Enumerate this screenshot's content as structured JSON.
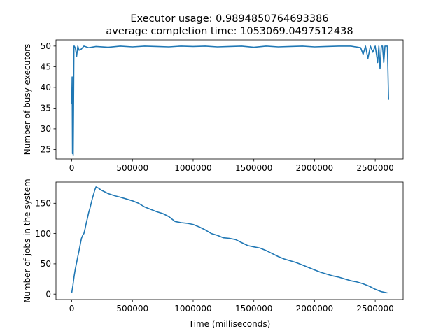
{
  "figure": {
    "title_line1": "Executor usage: 0.9894850764693386",
    "title_line2": "average completion time: 1053069.0497512438"
  },
  "chart_data": [
    {
      "type": "line",
      "title": "Executor usage: 0.9894850764693386\naverage completion time: 1053069.0497512438",
      "xlabel": "",
      "ylabel": "Number of busy executors",
      "xlim": [
        -130000,
        2730000
      ],
      "ylim": [
        22.7,
        51.5
      ],
      "xticks": [
        0,
        500000,
        1000000,
        1500000,
        2000000,
        2500000
      ],
      "yticks": [
        25,
        30,
        35,
        40,
        45,
        50
      ],
      "grid": false,
      "color": "#1f77b4",
      "series": [
        {
          "x": [
            0,
            3000,
            6000,
            9000,
            12000,
            15000,
            18000,
            21000,
            24000,
            30000,
            40000,
            50000,
            60000,
            80000,
            100000,
            140000,
            200000,
            300000,
            400000,
            500000,
            600000,
            700000,
            800000,
            900000,
            1000000,
            1100000,
            1200000,
            1300000,
            1400000,
            1500000,
            1600000,
            1700000,
            1800000,
            1900000,
            2000000,
            2100000,
            2200000,
            2300000,
            2380000,
            2400000,
            2420000,
            2440000,
            2460000,
            2480000,
            2500000,
            2520000,
            2530000,
            2540000,
            2550000,
            2560000,
            2570000,
            2580000,
            2590000,
            2600000,
            2605000,
            2610000
          ],
          "y": [
            36,
            42.5,
            24,
            40,
            23.5,
            35,
            50,
            50,
            49.8,
            49.5,
            47.5,
            50,
            49,
            49.3,
            50,
            49.6,
            49.9,
            49.7,
            50,
            49.8,
            50,
            49.9,
            49.8,
            50,
            49.9,
            50,
            49.8,
            49.9,
            50,
            49.7,
            50,
            49.8,
            49.9,
            50,
            49.8,
            49.9,
            50,
            50,
            49.6,
            48,
            50,
            47,
            50,
            48.5,
            50,
            46,
            50,
            44.5,
            50,
            50,
            46,
            50,
            50,
            50,
            44,
            37
          ]
        }
      ]
    },
    {
      "type": "line",
      "title": "",
      "xlabel": "Time (milliseconds)",
      "ylabel": "Number of jobs in the system",
      "xlim": [
        -130000,
        2730000
      ],
      "ylim": [
        -9,
        185
      ],
      "xticks": [
        0,
        500000,
        1000000,
        1500000,
        2000000,
        2500000
      ],
      "yticks": [
        0,
        50,
        100,
        150
      ],
      "grid": false,
      "color": "#1f77b4",
      "series": [
        {
          "x": [
            0,
            10000,
            20000,
            30000,
            40000,
            50000,
            60000,
            70000,
            80000,
            90000,
            100000,
            110000,
            120000,
            130000,
            140000,
            150000,
            160000,
            170000,
            180000,
            190000,
            200000,
            220000,
            240000,
            270000,
            300000,
            330000,
            360000,
            400000,
            450000,
            500000,
            550000,
            600000,
            650000,
            700000,
            750000,
            800000,
            850000,
            900000,
            950000,
            1000000,
            1050000,
            1100000,
            1150000,
            1200000,
            1250000,
            1300000,
            1350000,
            1400000,
            1450000,
            1500000,
            1550000,
            1600000,
            1650000,
            1700000,
            1750000,
            1800000,
            1850000,
            1900000,
            1950000,
            2000000,
            2050000,
            2100000,
            2150000,
            2200000,
            2250000,
            2300000,
            2350000,
            2400000,
            2450000,
            2500000,
            2550000,
            2600000
          ],
          "y": [
            2,
            15,
            30,
            42,
            52,
            62,
            72,
            82,
            92,
            97,
            100,
            108,
            118,
            126,
            135,
            142,
            150,
            158,
            165,
            172,
            177,
            175,
            172,
            169,
            166,
            164,
            162,
            160,
            157,
            154,
            150,
            144,
            140,
            136,
            133,
            128,
            120,
            118,
            117,
            115,
            111,
            106,
            100,
            97,
            93,
            92,
            90,
            85,
            80,
            78,
            76,
            72,
            67,
            62,
            58,
            55,
            52,
            48,
            44,
            40,
            36,
            33,
            30,
            28,
            25,
            22,
            20,
            17,
            13,
            8,
            4,
            2
          ]
        }
      ]
    }
  ]
}
